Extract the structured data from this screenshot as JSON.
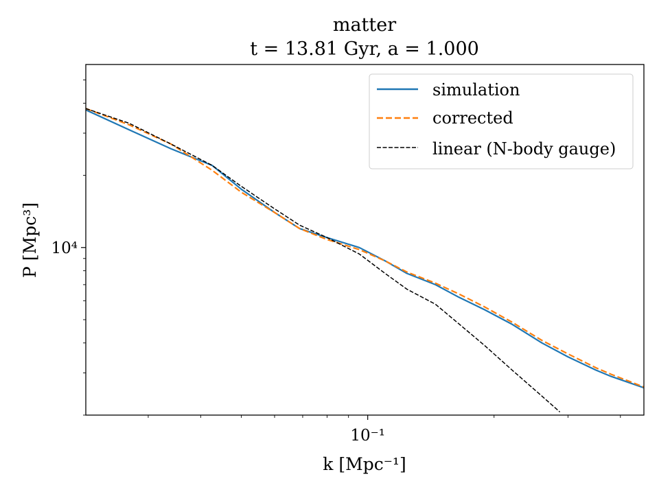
{
  "chart_data": {
    "type": "line",
    "title": "matter",
    "subtitle": "t = 13.81 Gyr, a = 1.000",
    "xlabel": "k [Mpc⁻¹]",
    "ylabel": "P [Mpc³]",
    "xscale": "log",
    "yscale": "log",
    "xlim": [
      0.0213,
      0.455
    ],
    "ylim": [
      2000,
      58000
    ],
    "xticks": [
      {
        "value": 0.1,
        "label": "10⁻¹"
      }
    ],
    "yticks": [
      {
        "value": 10000,
        "label": "10⁴"
      }
    ],
    "grid": false,
    "legend_position": "top-right",
    "series": [
      {
        "name": "simulation",
        "color": "#1f77b4",
        "dash": "solid",
        "x": [
          0.0213,
          0.027,
          0.034,
          0.0426,
          0.05,
          0.06,
          0.0688,
          0.08,
          0.0955,
          0.11,
          0.124,
          0.145,
          0.165,
          0.19,
          0.22,
          0.26,
          0.3,
          0.35,
          0.38,
          0.455
        ],
        "y": [
          37500,
          31000,
          25800,
          22000,
          17500,
          14000,
          12000,
          11000,
          10000,
          8800,
          7800,
          7000,
          6200,
          5500,
          4800,
          4000,
          3500,
          3080,
          2900,
          2600
        ]
      },
      {
        "name": "corrected",
        "color": "#ff7f0e",
        "dash": "dashed",
        "x": [
          0.0213,
          0.027,
          0.034,
          0.0426,
          0.05,
          0.06,
          0.0688,
          0.08,
          0.0955,
          0.11,
          0.124,
          0.145,
          0.165,
          0.19,
          0.22,
          0.26,
          0.3,
          0.35,
          0.38,
          0.455
        ],
        "y": [
          38000,
          32500,
          27000,
          21000,
          17000,
          14000,
          12000,
          10800,
          9800,
          8800,
          7900,
          7100,
          6400,
          5650,
          4900,
          4100,
          3600,
          3150,
          2960,
          2620
        ]
      },
      {
        "name": "linear (N-body gauge)",
        "color": "#000000",
        "dash": "dashed",
        "x": [
          0.0213,
          0.027,
          0.034,
          0.0426,
          0.05,
          0.06,
          0.0688,
          0.08,
          0.0955,
          0.11,
          0.124,
          0.145,
          0.165,
          0.19,
          0.22,
          0.26,
          0.287
        ],
        "y": [
          38000,
          33000,
          27000,
          22000,
          18000,
          14500,
          12400,
          11000,
          9400,
          7800,
          6700,
          5800,
          4800,
          3900,
          3100,
          2400,
          2060
        ]
      }
    ]
  }
}
